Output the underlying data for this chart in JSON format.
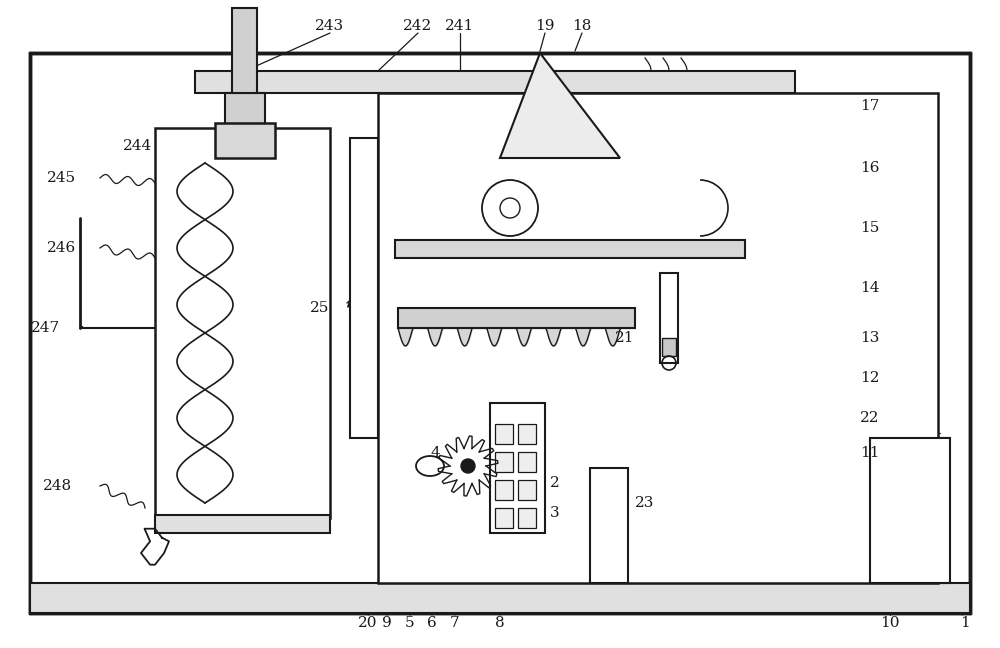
{
  "bg_color": "#ffffff",
  "line_color": "#1a1a1a",
  "fig_width": 10.0,
  "fig_height": 6.48,
  "dpi": 100
}
